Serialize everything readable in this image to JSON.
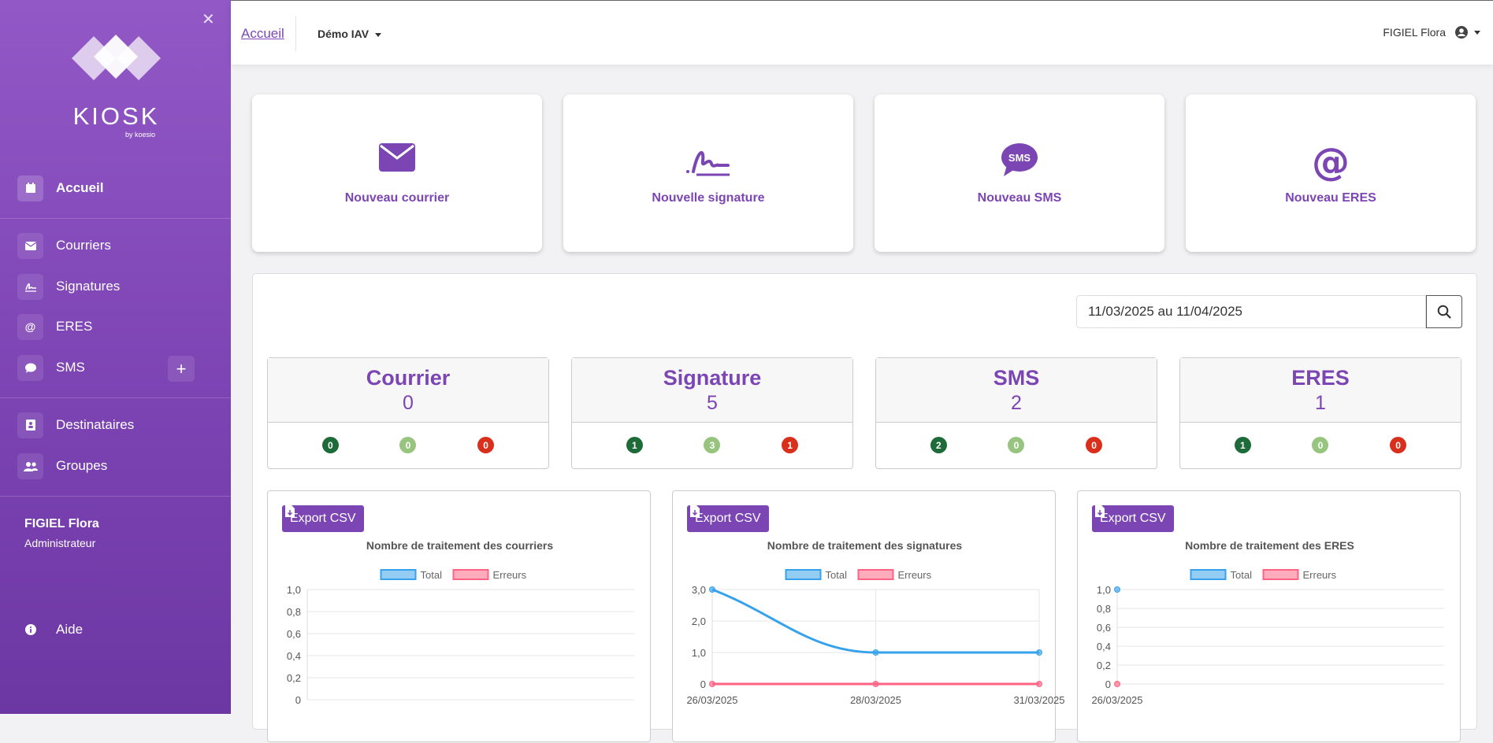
{
  "sidebar": {
    "logo_text": "KIOSK",
    "logo_sub": "by koesio",
    "items": [
      {
        "label": "Accueil",
        "icon": "calendar-icon"
      },
      {
        "label": "Courriers",
        "icon": "envelope-icon"
      },
      {
        "label": "Signatures",
        "icon": "signature-icon"
      },
      {
        "label": "ERES",
        "icon": "at-icon"
      },
      {
        "label": "SMS",
        "icon": "sms-icon"
      },
      {
        "label": "Destinataires",
        "icon": "contacts-icon"
      },
      {
        "label": "Groupes",
        "icon": "users-icon"
      },
      {
        "label": "Aide",
        "icon": "info-icon"
      }
    ],
    "user": {
      "name": "FIGIEL Flora",
      "role": "Administrateur"
    }
  },
  "topbar": {
    "breadcrumb": "Accueil",
    "org": "Démo IAV",
    "user": "FIGIEL Flora"
  },
  "actions": [
    {
      "label": "Nouveau courrier"
    },
    {
      "label": "Nouvelle signature"
    },
    {
      "label": "Nouveau SMS"
    },
    {
      "label": "Nouveau ERES"
    }
  ],
  "date_range": {
    "value": "11/03/2025 au 11/04/2025"
  },
  "stats": [
    {
      "title": "Courrier",
      "value": "0",
      "badges": [
        "0",
        "0",
        "0"
      ]
    },
    {
      "title": "Signature",
      "value": "5",
      "badges": [
        "1",
        "3",
        "1"
      ]
    },
    {
      "title": "SMS",
      "value": "2",
      "badges": [
        "2",
        "0",
        "0"
      ]
    },
    {
      "title": "ERES",
      "value": "1",
      "badges": [
        "1",
        "0",
        "0"
      ]
    }
  ],
  "colors": {
    "accent": "#7b46b4",
    "badge_dark": "#1e6b3a",
    "badge_light": "#97c47e",
    "badge_red": "#d9301d",
    "total": "#36a2eb",
    "errors": "#ff6384"
  },
  "export_label": "Export CSV",
  "chart_data": [
    {
      "type": "line",
      "title": "Nombre de traitement des courriers",
      "legend": [
        "Total",
        "Erreurs"
      ],
      "x": [],
      "series": [
        {
          "name": "Total",
          "values": []
        },
        {
          "name": "Erreurs",
          "values": []
        }
      ],
      "yticks": [
        "1,0",
        "0,8",
        "0,6",
        "0,4",
        "0,2",
        "0"
      ],
      "ylim": [
        0,
        1
      ]
    },
    {
      "type": "line",
      "title": "Nombre de traitement des signatures",
      "legend": [
        "Total",
        "Erreurs"
      ],
      "x": [
        "26/03/2025",
        "28/03/2025",
        "31/03/2025"
      ],
      "series": [
        {
          "name": "Total",
          "values": [
            3,
            1,
            1
          ]
        },
        {
          "name": "Erreurs",
          "values": [
            0,
            0,
            0
          ]
        }
      ],
      "yticks": [
        "3,0",
        "2,0",
        "1,0",
        "0"
      ],
      "ylim": [
        0,
        3
      ]
    },
    {
      "type": "line",
      "title": "Nombre de traitement des ERES",
      "legend": [
        "Total",
        "Erreurs"
      ],
      "x": [
        "26/03/2025"
      ],
      "series": [
        {
          "name": "Total",
          "values": [
            1
          ]
        },
        {
          "name": "Erreurs",
          "values": [
            0
          ]
        }
      ],
      "yticks": [
        "1,0",
        "0,8",
        "0,6",
        "0,4",
        "0,2",
        "0"
      ],
      "ylim": [
        0,
        1
      ]
    }
  ]
}
